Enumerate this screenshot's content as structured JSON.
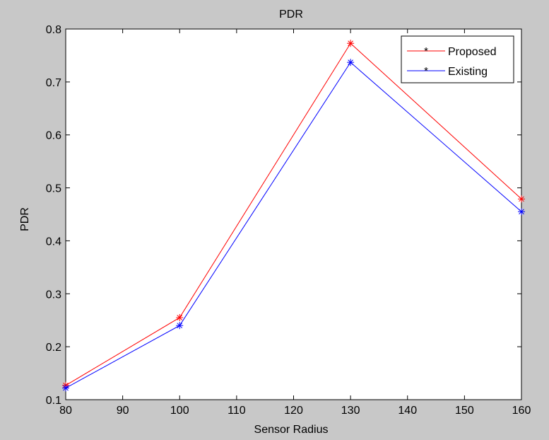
{
  "chart_data": {
    "type": "line",
    "title": "PDR",
    "xlabel": "Sensor Radius",
    "ylabel": "PDR",
    "xlim": [
      80,
      160
    ],
    "ylim": [
      0.1,
      0.8
    ],
    "xticks": [
      "80",
      "90",
      "100",
      "110",
      "120",
      "130",
      "140",
      "150",
      "160"
    ],
    "yticks": [
      "0.1",
      "0.2",
      "0.3",
      "0.4",
      "0.5",
      "0.6",
      "0.7",
      "0.8"
    ],
    "x": [
      80,
      100,
      130,
      160
    ],
    "series": [
      {
        "name": "Proposed",
        "color": "#ff0000",
        "marker": "asterisk",
        "values": [
          0.127,
          0.255,
          0.773,
          0.479
        ]
      },
      {
        "name": "Existing",
        "color": "#0000ff",
        "marker": "asterisk",
        "values": [
          0.122,
          0.24,
          0.737,
          0.455
        ]
      }
    ],
    "legend": "top-right",
    "grid": false,
    "background": "#c8c8c8",
    "plot_background": "#ffffff"
  }
}
